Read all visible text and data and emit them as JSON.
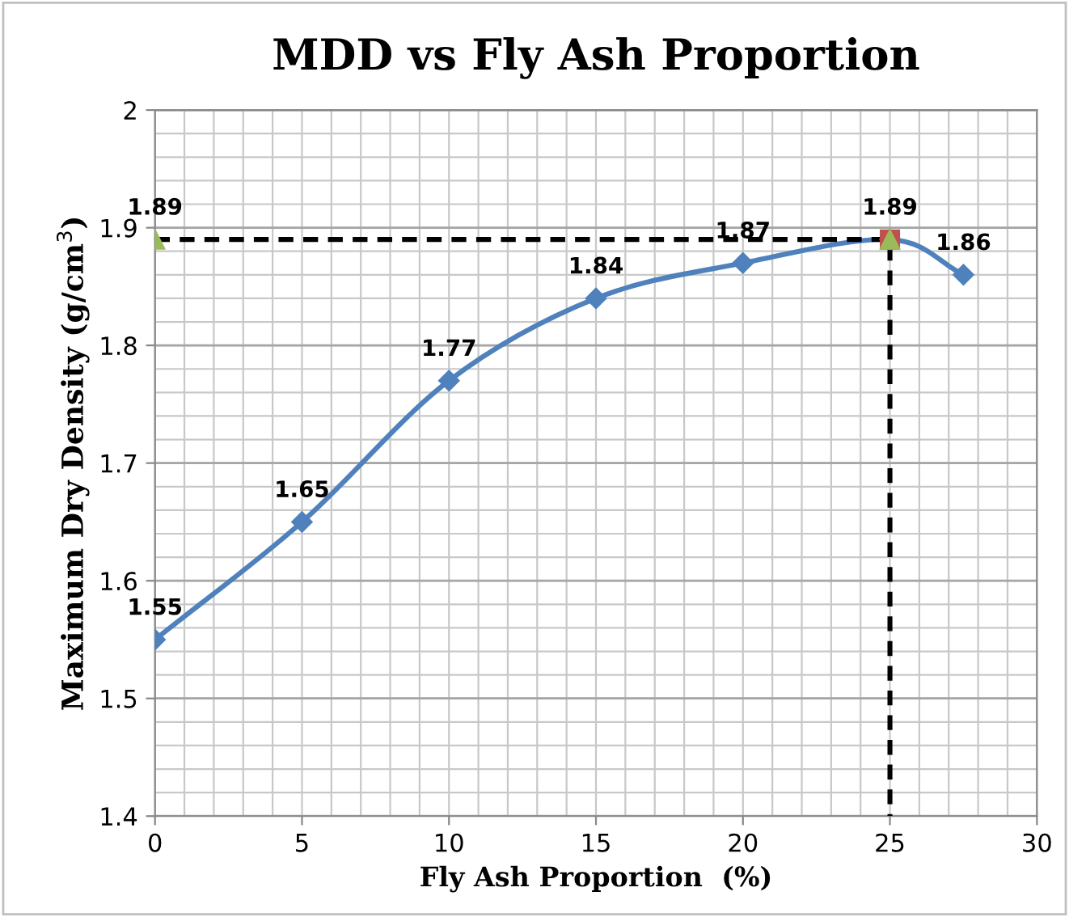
{
  "chart_data": {
    "type": "line",
    "title": "MDD vs Fly Ash Proportion",
    "xlabel": "Fly Ash Proportion  (%)",
    "ylabel": "Maximum Dry Density (g/cm$^{3}$)",
    "xlim": [
      0,
      30
    ],
    "xticks": [
      0,
      5,
      10,
      15,
      20,
      25,
      30
    ],
    "ylim": [
      1.4,
      2
    ],
    "yticks": [
      1.4,
      1.5,
      1.6,
      1.7,
      1.8,
      1.9,
      2
    ],
    "grid": true,
    "legend": false,
    "series": [
      {
        "color": "#4f81bd",
        "marker": "diamond",
        "line_style": "solid",
        "x": [
          0,
          5,
          10,
          15,
          20,
          25,
          27.5
        ],
        "values": [
          1.55,
          1.65,
          1.77,
          1.84,
          1.87,
          1.89,
          1.86
        ],
        "value_labels": [
          "1.55",
          "1.65",
          "1.77",
          "1.84",
          "1.87",
          "1.89",
          "1.86"
        ]
      },
      {
        "type": "line",
        "color": "#000000",
        "marker": "none",
        "line_style": "dashed",
        "x": [
          0,
          25,
          25
        ],
        "values": [
          1.89,
          1.89,
          1.4
        ]
      },
      {
        "type": "scatter",
        "color": "#c0504d",
        "marker": "square",
        "x": [
          25
        ],
        "values": [
          1.89
        ]
      },
      {
        "type": "scatter",
        "color": "#9bbb59",
        "marker": "triangle",
        "x": [
          0,
          25
        ],
        "values": [
          1.89,
          1.89
        ],
        "value_labels": [
          "1.89",
          null
        ]
      }
    ]
  }
}
